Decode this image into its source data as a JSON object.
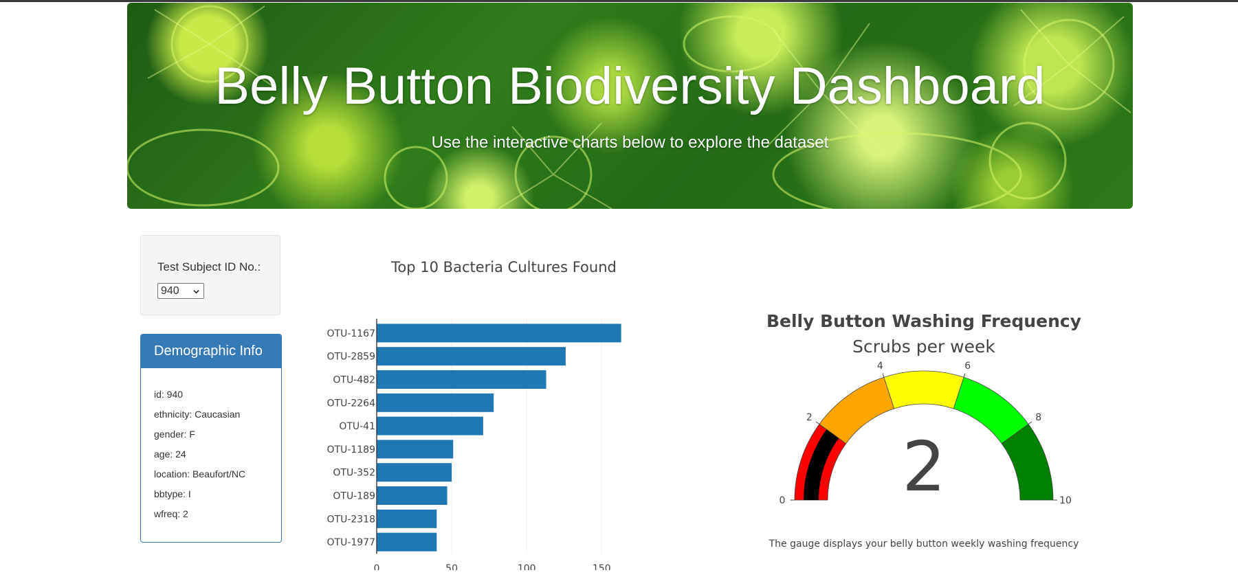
{
  "header": {
    "title": "Belly Button Biodiversity Dashboard",
    "subtitle": "Use the interactive charts below to explore the dataset"
  },
  "selector": {
    "label": "Test Subject ID No.:",
    "selected": "940"
  },
  "demographics": {
    "heading": "Demographic Info",
    "lines": [
      "id: 940",
      "ethnicity: Caucasian",
      "gender: F",
      "age: 24",
      "location: Beaufort/NC",
      "bbtype: I",
      "wfreq: 2"
    ]
  },
  "gauge_note": "The gauge displays your belly button weekly washing frequency",
  "colors": {
    "bar": "#1f77b4",
    "panel_header": "#337ab7",
    "gauge_steps": [
      "#ff0000",
      "#ffa500",
      "#ffff00",
      "#00ff00",
      "#008000"
    ],
    "gauge_bar": "#000000"
  },
  "chart_data": [
    {
      "type": "bar",
      "orientation": "horizontal",
      "title": "Top 10 Bacteria Cultures Found",
      "categories": [
        "OTU-1167",
        "OTU-2859",
        "OTU-482",
        "OTU-2264",
        "OTU-41",
        "OTU-1189",
        "OTU-352",
        "OTU-189",
        "OTU-2318",
        "OTU-1977"
      ],
      "values": [
        163,
        126,
        113,
        78,
        71,
        51,
        50,
        47,
        40,
        40
      ],
      "xlim": [
        0,
        165
      ],
      "xticks": [
        0,
        50,
        100,
        150
      ],
      "grid": true
    },
    {
      "type": "gauge",
      "title": "Belly Button Washing Frequency",
      "subtitle": "Scrubs per week",
      "value": 2,
      "range": [
        0,
        10
      ],
      "ticks": [
        0,
        2,
        4,
        6,
        8,
        10
      ],
      "steps": [
        [
          0,
          2
        ],
        [
          2,
          4
        ],
        [
          4,
          6
        ],
        [
          6,
          8
        ],
        [
          8,
          10
        ]
      ]
    }
  ]
}
